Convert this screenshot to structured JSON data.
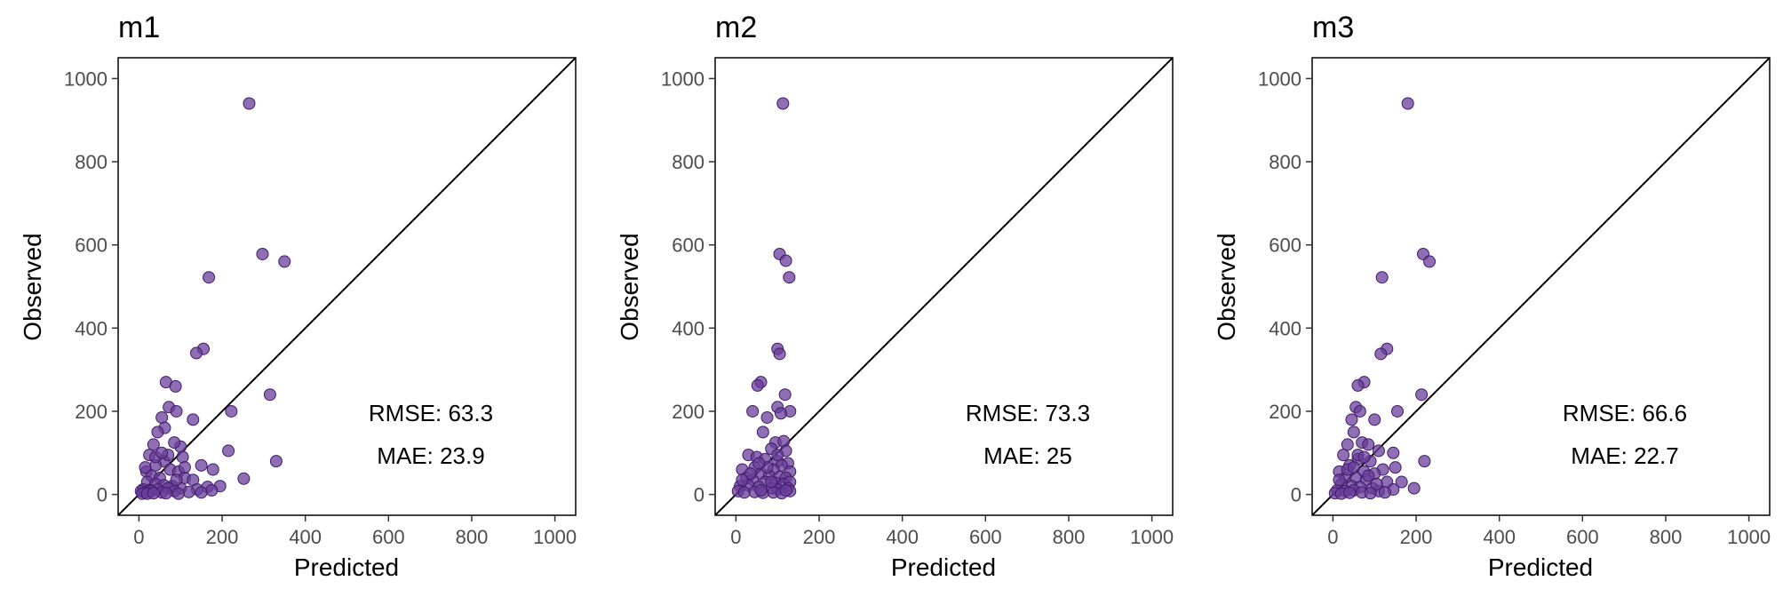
{
  "colors": {
    "point_fill": "#6a3d9a",
    "point_stroke": "#3f1d6b",
    "axis": "#000000",
    "tick_text": "#4d4d4d"
  },
  "chart_data": [
    {
      "type": "scatter",
      "title": "m1",
      "xlabel": "Predicted",
      "ylabel": "Observed",
      "xlim": [
        -50,
        1050
      ],
      "ylim": [
        -50,
        1050
      ],
      "xticks": [
        "0",
        "200",
        "400",
        "600",
        "800",
        "1000"
      ],
      "yticks": [
        "0",
        "200",
        "400",
        "600",
        "800",
        "1000"
      ],
      "identity_line": true,
      "metrics": {
        "rmse": "RMSE: 63.3",
        "mae": "MAE: 23.9"
      },
      "points": [
        [
          265,
          940
        ],
        [
          297,
          578
        ],
        [
          350,
          560
        ],
        [
          168,
          522
        ],
        [
          155,
          350
        ],
        [
          138,
          340
        ],
        [
          65,
          270
        ],
        [
          88,
          260
        ],
        [
          315,
          240
        ],
        [
          72,
          210
        ],
        [
          90,
          200
        ],
        [
          222,
          200
        ],
        [
          55,
          185
        ],
        [
          130,
          180
        ],
        [
          62,
          160
        ],
        [
          45,
          150
        ],
        [
          35,
          120
        ],
        [
          100,
          115
        ],
        [
          85,
          125
        ],
        [
          215,
          105
        ],
        [
          105,
          90
        ],
        [
          25,
          95
        ],
        [
          60,
          80
        ],
        [
          330,
          80
        ],
        [
          150,
          70
        ],
        [
          178,
          60
        ],
        [
          40,
          70
        ],
        [
          75,
          60
        ],
        [
          95,
          55
        ],
        [
          18,
          55
        ],
        [
          30,
          45
        ],
        [
          50,
          40
        ],
        [
          110,
          40
        ],
        [
          252,
          38
        ],
        [
          130,
          35
        ],
        [
          20,
          30
        ],
        [
          40,
          25
        ],
        [
          60,
          22
        ],
        [
          80,
          20
        ],
        [
          165,
          18
        ],
        [
          195,
          20
        ],
        [
          70,
          15
        ],
        [
          100,
          15
        ],
        [
          10,
          12
        ],
        [
          25,
          10
        ],
        [
          45,
          12
        ],
        [
          140,
          12
        ],
        [
          5,
          8
        ],
        [
          15,
          5
        ],
        [
          30,
          8
        ],
        [
          55,
          5
        ],
        [
          85,
          8
        ],
        [
          120,
          6
        ],
        [
          175,
          10
        ],
        [
          8,
          2
        ],
        [
          20,
          2
        ],
        [
          35,
          3
        ],
        [
          65,
          3
        ],
        [
          95,
          2
        ],
        [
          150,
          5
        ],
        [
          40,
          90
        ],
        [
          70,
          95
        ],
        [
          110,
          65
        ],
        [
          15,
          65
        ],
        [
          55,
          100
        ],
        [
          90,
          35
        ]
      ]
    },
    {
      "type": "scatter",
      "title": "m2",
      "xlabel": "Predicted",
      "ylabel": "Observed",
      "xlim": [
        -50,
        1050
      ],
      "ylim": [
        -50,
        1050
      ],
      "xticks": [
        "0",
        "200",
        "400",
        "600",
        "800",
        "1000"
      ],
      "yticks": [
        "0",
        "200",
        "400",
        "600",
        "800",
        "1000"
      ],
      "identity_line": true,
      "metrics": {
        "rmse": "RMSE: 73.3",
        "mae": "MAE: 25"
      },
      "points": [
        [
          113,
          940
        ],
        [
          105,
          578
        ],
        [
          120,
          562
        ],
        [
          128,
          522
        ],
        [
          100,
          350
        ],
        [
          105,
          338
        ],
        [
          60,
          270
        ],
        [
          52,
          262
        ],
        [
          118,
          240
        ],
        [
          100,
          210
        ],
        [
          40,
          200
        ],
        [
          130,
          200
        ],
        [
          108,
          195
        ],
        [
          75,
          185
        ],
        [
          95,
          125
        ],
        [
          115,
          128
        ],
        [
          65,
          150
        ],
        [
          85,
          110
        ],
        [
          120,
          105
        ],
        [
          30,
          95
        ],
        [
          50,
          90
        ],
        [
          70,
          85
        ],
        [
          100,
          80
        ],
        [
          125,
          75
        ],
        [
          110,
          70
        ],
        [
          15,
          60
        ],
        [
          45,
          65
        ],
        [
          90,
          60
        ],
        [
          130,
          55
        ],
        [
          60,
          50
        ],
        [
          80,
          45
        ],
        [
          105,
          42
        ],
        [
          120,
          40
        ],
        [
          25,
          40
        ],
        [
          40,
          35
        ],
        [
          70,
          30
        ],
        [
          95,
          28
        ],
        [
          115,
          25
        ],
        [
          130,
          30
        ],
        [
          10,
          20
        ],
        [
          30,
          22
        ],
        [
          55,
          18
        ],
        [
          85,
          15
        ],
        [
          100,
          12
        ],
        [
          125,
          15
        ],
        [
          5,
          8
        ],
        [
          20,
          5
        ],
        [
          45,
          6
        ],
        [
          65,
          4
        ],
        [
          90,
          5
        ],
        [
          110,
          3
        ],
        [
          130,
          8
        ],
        [
          35,
          50
        ],
        [
          75,
          65
        ],
        [
          55,
          75
        ],
        [
          100,
          95
        ],
        [
          85,
          30
        ],
        [
          120,
          10
        ],
        [
          15,
          35
        ],
        [
          60,
          10
        ]
      ]
    },
    {
      "type": "scatter",
      "title": "m3",
      "xlabel": "Predicted",
      "ylabel": "Observed",
      "xlim": [
        -50,
        1050
      ],
      "ylim": [
        -50,
        1050
      ],
      "xticks": [
        "0",
        "200",
        "400",
        "600",
        "800",
        "1000"
      ],
      "yticks": [
        "0",
        "200",
        "400",
        "600",
        "800",
        "1000"
      ],
      "identity_line": true,
      "metrics": {
        "rmse": "RMSE: 66.6",
        "mae": "MAE: 22.7"
      },
      "points": [
        [
          180,
          940
        ],
        [
          217,
          578
        ],
        [
          232,
          560
        ],
        [
          118,
          522
        ],
        [
          130,
          350
        ],
        [
          115,
          338
        ],
        [
          75,
          270
        ],
        [
          60,
          262
        ],
        [
          213,
          240
        ],
        [
          55,
          210
        ],
        [
          65,
          200
        ],
        [
          155,
          200
        ],
        [
          45,
          180
        ],
        [
          100,
          180
        ],
        [
          50,
          150
        ],
        [
          70,
          125
        ],
        [
          85,
          120
        ],
        [
          35,
          120
        ],
        [
          110,
          105
        ],
        [
          145,
          100
        ],
        [
          25,
          95
        ],
        [
          60,
          85
        ],
        [
          90,
          80
        ],
        [
          220,
          80
        ],
        [
          150,
          65
        ],
        [
          120,
          60
        ],
        [
          40,
          70
        ],
        [
          75,
          55
        ],
        [
          100,
          50
        ],
        [
          15,
          55
        ],
        [
          30,
          40
        ],
        [
          55,
          40
        ],
        [
          80,
          35
        ],
        [
          130,
          30
        ],
        [
          165,
          30
        ],
        [
          20,
          25
        ],
        [
          45,
          20
        ],
        [
          65,
          18
        ],
        [
          95,
          15
        ],
        [
          145,
          12
        ],
        [
          195,
          15
        ],
        [
          10,
          10
        ],
        [
          30,
          8
        ],
        [
          50,
          10
        ],
        [
          110,
          8
        ],
        [
          5,
          3
        ],
        [
          20,
          2
        ],
        [
          40,
          4
        ],
        [
          70,
          5
        ],
        [
          90,
          3
        ],
        [
          125,
          5
        ],
        [
          60,
          95
        ],
        [
          35,
          60
        ],
        [
          85,
          45
        ],
        [
          105,
          25
        ],
        [
          15,
          35
        ],
        [
          50,
          65
        ],
        [
          75,
          90
        ]
      ]
    }
  ]
}
